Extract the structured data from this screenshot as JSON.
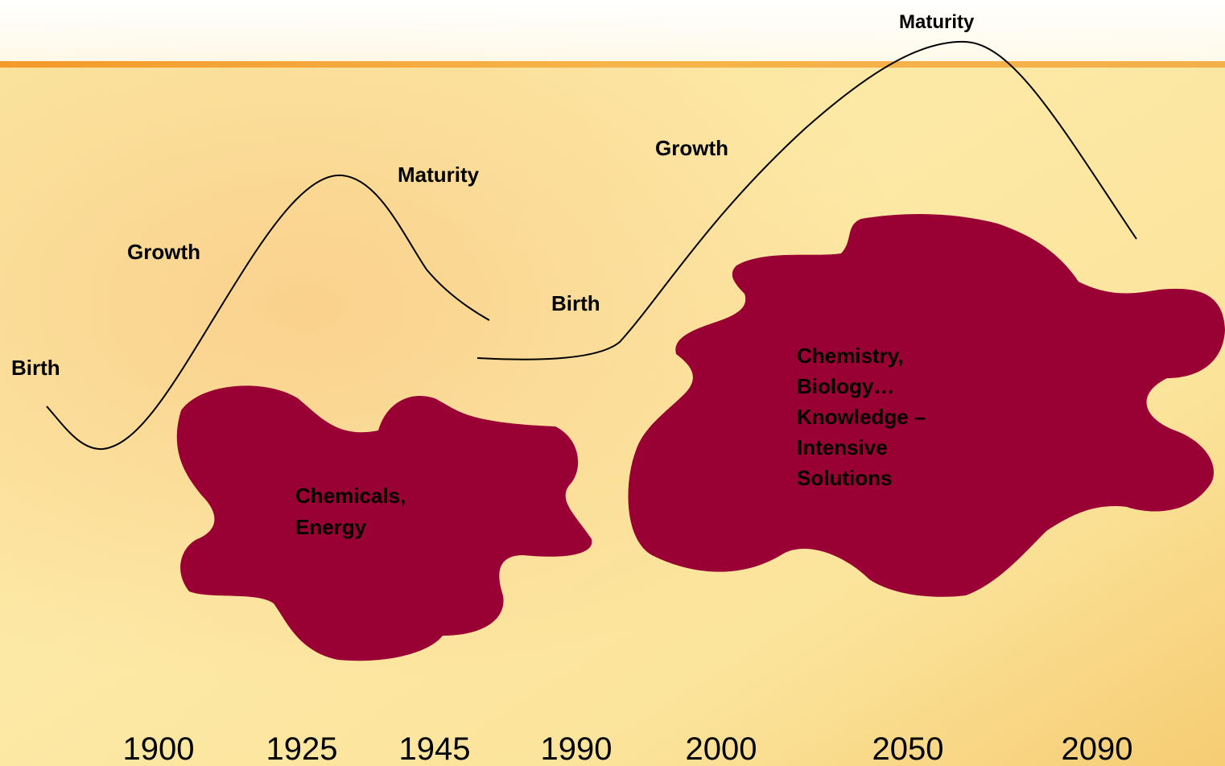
{
  "curves": [
    {
      "phases": [
        "Birth",
        "Growth",
        "Maturity"
      ],
      "blob": [
        "Chemicals,",
        "Energy"
      ]
    },
    {
      "phases": [
        "Birth",
        "Growth",
        "Maturity"
      ],
      "blob": [
        "Chemistry,",
        "Biology…",
        "Knowledge –",
        "Intensive",
        "Solutions"
      ]
    }
  ],
  "timeline": [
    "1900",
    "1925",
    "1945",
    "1990",
    "2000",
    "2050",
    "2090"
  ]
}
